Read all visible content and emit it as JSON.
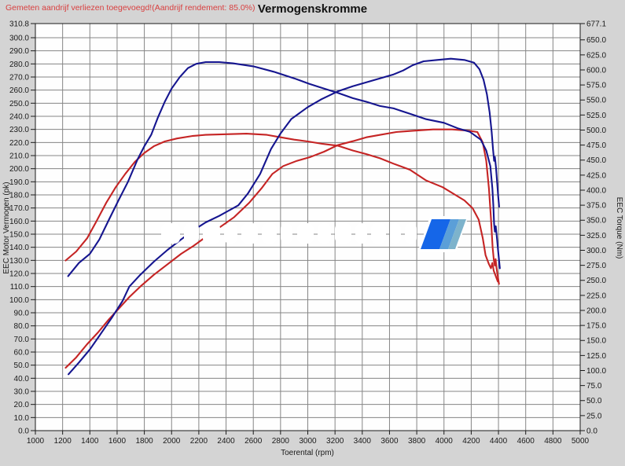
{
  "header": {
    "note": "Gemeten aandrijf verliezen toegevoegd!(Aandrijf rendement: 85.0%)",
    "title": "Vermogenskromme"
  },
  "axes": {
    "left": {
      "title": "EEC Motor Vermogen (pk)",
      "max": 310.8,
      "labels": [
        "310.8",
        "300.0",
        "290.0",
        "280.0",
        "270.0",
        "260.0",
        "250.0",
        "240.0",
        "230.0",
        "220.0",
        "210.0",
        "200.0",
        "190.0",
        "180.0",
        "170.0",
        "160.0",
        "150.0",
        "140.0",
        "130.0",
        "120.0",
        "110.0",
        "100.0",
        "90.0",
        "80.0",
        "70.0",
        "60.0",
        "50.0",
        "40.0",
        "30.0",
        "20.0",
        "10.0",
        "0.0"
      ]
    },
    "right": {
      "title": "EEC Torque (Nm)",
      "max": 677.1,
      "labels": [
        "677.1",
        "650.0",
        "625.0",
        "600.0",
        "575.0",
        "550.0",
        "525.0",
        "500.0",
        "475.0",
        "450.0",
        "425.0",
        "400.0",
        "375.0",
        "350.0",
        "325.0",
        "300.0",
        "275.0",
        "250.0",
        "225.0",
        "200.0",
        "175.0",
        "150.0",
        "125.0",
        "100.0",
        "75.0",
        "50.0",
        "25.0",
        "0.0"
      ]
    },
    "x": {
      "title": "Toerental (rpm)",
      "min": 1000,
      "max": 5000,
      "labels": [
        "1000",
        "1200",
        "1400",
        "1600",
        "1800",
        "2000",
        "2200",
        "2400",
        "2600",
        "2800",
        "3000",
        "3200",
        "3400",
        "3600",
        "3800",
        "4000",
        "4200",
        "4400",
        "4600",
        "4800",
        "5000"
      ]
    }
  },
  "chart_data": {
    "type": "line",
    "title": "Vermogenskromme",
    "xlabel": "Toerental (rpm)",
    "ylabel_left": "EEC Motor Vermogen (pk)",
    "ylabel_right": "EEC Torque (Nm)",
    "x_range": [
      1000,
      5000
    ],
    "y_left_range": [
      0,
      310.8
    ],
    "y_right_range": [
      0,
      677.1
    ],
    "grid": true,
    "grid_step_x_rpm": 200,
    "grid_step_left_pk": 10,
    "series": [
      {
        "name": "torque-original",
        "color": "#c52424",
        "axis": "right",
        "unit": "Nm",
        "points": [
          [
            1222,
            283
          ],
          [
            1300,
            298
          ],
          [
            1380,
            320
          ],
          [
            1450,
            349
          ],
          [
            1520,
            379
          ],
          [
            1590,
            405
          ],
          [
            1660,
            427
          ],
          [
            1730,
            447
          ],
          [
            1800,
            462
          ],
          [
            1870,
            473
          ],
          [
            1950,
            481
          ],
          [
            2040,
            486
          ],
          [
            2150,
            490
          ],
          [
            2250,
            492
          ],
          [
            2400,
            493
          ],
          [
            2550,
            494
          ],
          [
            2700,
            492
          ],
          [
            2800,
            488
          ],
          [
            2900,
            484
          ],
          [
            3000,
            481
          ],
          [
            3110,
            477
          ],
          [
            3220,
            474
          ],
          [
            3330,
            466
          ],
          [
            3430,
            460
          ],
          [
            3530,
            453
          ],
          [
            3630,
            444
          ],
          [
            3750,
            434
          ],
          [
            3870,
            416
          ],
          [
            3990,
            405
          ],
          [
            4070,
            394
          ],
          [
            4150,
            383
          ],
          [
            4210,
            370
          ],
          [
            4255,
            351
          ],
          [
            4285,
            320
          ],
          [
            4305,
            292
          ],
          [
            4330,
            277
          ],
          [
            4345,
            270
          ],
          [
            4355,
            279
          ],
          [
            4365,
            266
          ],
          [
            4380,
            257
          ],
          [
            4395,
            248
          ]
        ]
      },
      {
        "name": "power-original",
        "color": "#c52424",
        "axis": "left",
        "unit": "pk",
        "points": [
          [
            1222,
            48
          ],
          [
            1300,
            56
          ],
          [
            1380,
            66
          ],
          [
            1460,
            75
          ],
          [
            1540,
            85
          ],
          [
            1620,
            94
          ],
          [
            1690,
            102
          ],
          [
            1770,
            110
          ],
          [
            1870,
            119
          ],
          [
            1970,
            127
          ],
          [
            2070,
            135
          ],
          [
            2160,
            141
          ],
          [
            2240,
            147
          ],
          [
            2350,
            155
          ],
          [
            2460,
            163
          ],
          [
            2570,
            174
          ],
          [
            2660,
            185
          ],
          [
            2740,
            196
          ],
          [
            2820,
            202
          ],
          [
            2920,
            206
          ],
          [
            3020,
            209
          ],
          [
            3120,
            213
          ],
          [
            3220,
            218
          ],
          [
            3330,
            221
          ],
          [
            3430,
            224
          ],
          [
            3540,
            226
          ],
          [
            3650,
            228
          ],
          [
            3780,
            229
          ],
          [
            3920,
            230
          ],
          [
            4060,
            230
          ],
          [
            4180,
            229
          ],
          [
            4245,
            228
          ],
          [
            4285,
            220
          ],
          [
            4310,
            206
          ],
          [
            4330,
            185
          ],
          [
            4345,
            162
          ],
          [
            4357,
            140
          ],
          [
            4366,
            130
          ],
          [
            4373,
            126
          ],
          [
            4379,
            131
          ],
          [
            4386,
            124
          ],
          [
            4396,
            117
          ],
          [
            4404,
            112
          ]
        ]
      },
      {
        "name": "torque-tuned",
        "color": "#15158f",
        "axis": "right",
        "unit": "Nm",
        "points": [
          [
            1240,
            257
          ],
          [
            1320,
            279
          ],
          [
            1400,
            294
          ],
          [
            1470,
            318
          ],
          [
            1540,
            351
          ],
          [
            1610,
            383
          ],
          [
            1680,
            414
          ],
          [
            1750,
            451
          ],
          [
            1800,
            473
          ],
          [
            1850,
            492
          ],
          [
            1900,
            521
          ],
          [
            1950,
            547
          ],
          [
            2000,
            569
          ],
          [
            2060,
            588
          ],
          [
            2120,
            603
          ],
          [
            2180,
            610
          ],
          [
            2250,
            613
          ],
          [
            2350,
            613
          ],
          [
            2450,
            611
          ],
          [
            2600,
            606
          ],
          [
            2750,
            597
          ],
          [
            2900,
            586
          ],
          [
            3010,
            577
          ],
          [
            3120,
            569
          ],
          [
            3220,
            562
          ],
          [
            3330,
            553
          ],
          [
            3430,
            547
          ],
          [
            3530,
            540
          ],
          [
            3630,
            536
          ],
          [
            3750,
            527
          ],
          [
            3870,
            518
          ],
          [
            4000,
            512
          ],
          [
            4100,
            503
          ],
          [
            4190,
            497
          ],
          [
            4270,
            484
          ],
          [
            4310,
            466
          ],
          [
            4340,
            440
          ],
          [
            4355,
            403
          ],
          [
            4362,
            375
          ],
          [
            4368,
            344
          ],
          [
            4374,
            331
          ],
          [
            4380,
            340
          ],
          [
            4388,
            322
          ],
          [
            4398,
            298
          ],
          [
            4410,
            270
          ]
        ]
      },
      {
        "name": "power-tuned",
        "color": "#15158f",
        "axis": "left",
        "unit": "pk",
        "points": [
          [
            1243,
            43
          ],
          [
            1320,
            52
          ],
          [
            1400,
            62
          ],
          [
            1480,
            74
          ],
          [
            1560,
            86
          ],
          [
            1640,
            99
          ],
          [
            1690,
            110
          ],
          [
            1770,
            119
          ],
          [
            1870,
            129
          ],
          [
            1970,
            138
          ],
          [
            2070,
            146
          ],
          [
            2160,
            153
          ],
          [
            2250,
            159
          ],
          [
            2350,
            164
          ],
          [
            2420,
            168
          ],
          [
            2490,
            172
          ],
          [
            2560,
            181
          ],
          [
            2650,
            196
          ],
          [
            2730,
            215
          ],
          [
            2800,
            227
          ],
          [
            2880,
            238
          ],
          [
            3000,
            247
          ],
          [
            3100,
            253
          ],
          [
            3220,
            259
          ],
          [
            3330,
            263
          ],
          [
            3430,
            266
          ],
          [
            3530,
            269
          ],
          [
            3630,
            272
          ],
          [
            3700,
            275
          ],
          [
            3770,
            279
          ],
          [
            3850,
            282
          ],
          [
            3950,
            283
          ],
          [
            4050,
            284
          ],
          [
            4150,
            283
          ],
          [
            4220,
            281
          ],
          [
            4260,
            276
          ],
          [
            4290,
            268
          ],
          [
            4315,
            257
          ],
          [
            4335,
            243
          ],
          [
            4350,
            228
          ],
          [
            4360,
            215
          ],
          [
            4368,
            206
          ],
          [
            4374,
            209
          ],
          [
            4382,
            201
          ],
          [
            4390,
            190
          ],
          [
            4398,
            179
          ],
          [
            4405,
            171
          ]
        ]
      }
    ]
  },
  "watermark": {
    "logo_colors": [
      "#1566e8",
      "#5b9fd8",
      "#7db3cc"
    ]
  },
  "colors": {
    "background": "#d4d4d4",
    "plot_background": "#fefefe",
    "grid": "#858585",
    "border": "#1a1a1a",
    "note_red": "#d94040",
    "title_black": "#111111",
    "curve_navy": "#15158f",
    "curve_red": "#c52424"
  }
}
